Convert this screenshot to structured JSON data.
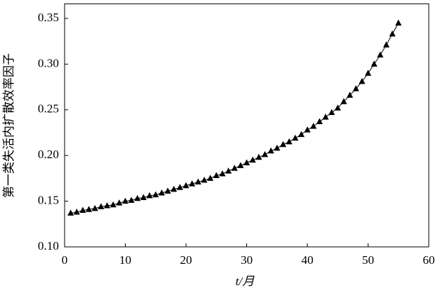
{
  "chart_data": {
    "type": "line",
    "x_label": "t/月",
    "y_label": "第一类失活内扩散效率因子",
    "x": [
      1,
      2,
      3,
      4,
      5,
      6,
      7,
      8,
      9,
      10,
      11,
      12,
      13,
      14,
      15,
      16,
      17,
      18,
      19,
      20,
      21,
      22,
      23,
      24,
      25,
      26,
      27,
      28,
      29,
      30,
      31,
      32,
      33,
      34,
      35,
      36,
      37,
      38,
      39,
      40,
      41,
      42,
      43,
      44,
      45,
      46,
      47,
      48,
      49,
      50,
      51,
      52,
      53,
      54,
      55
    ],
    "series": [
      {
        "color": "#000000",
        "values": [
          0.137,
          0.138,
          0.14,
          0.141,
          0.142,
          0.144,
          0.145,
          0.146,
          0.148,
          0.15,
          0.151,
          0.153,
          0.154,
          0.156,
          0.157,
          0.159,
          0.161,
          0.163,
          0.165,
          0.167,
          0.169,
          0.171,
          0.173,
          0.175,
          0.178,
          0.18,
          0.183,
          0.186,
          0.189,
          0.192,
          0.195,
          0.198,
          0.201,
          0.205,
          0.208,
          0.212,
          0.215,
          0.219,
          0.223,
          0.228,
          0.232,
          0.237,
          0.242,
          0.247,
          0.252,
          0.259,
          0.266,
          0.273,
          0.281,
          0.29,
          0.3,
          0.31,
          0.321,
          0.333,
          0.345
        ]
      }
    ],
    "xlim": [
      0,
      60
    ],
    "xticks": [
      0,
      10,
      20,
      30,
      40,
      50,
      60
    ],
    "ylim": [
      0.1,
      0.366
    ],
    "yticks": [
      {
        "value": 0.1,
        "label": "0.10"
      },
      0.15,
      {
        "value": 0.2,
        "label": "0.20"
      },
      0.25,
      {
        "value": 0.3,
        "label": "0.30"
      },
      0.35
    ]
  }
}
